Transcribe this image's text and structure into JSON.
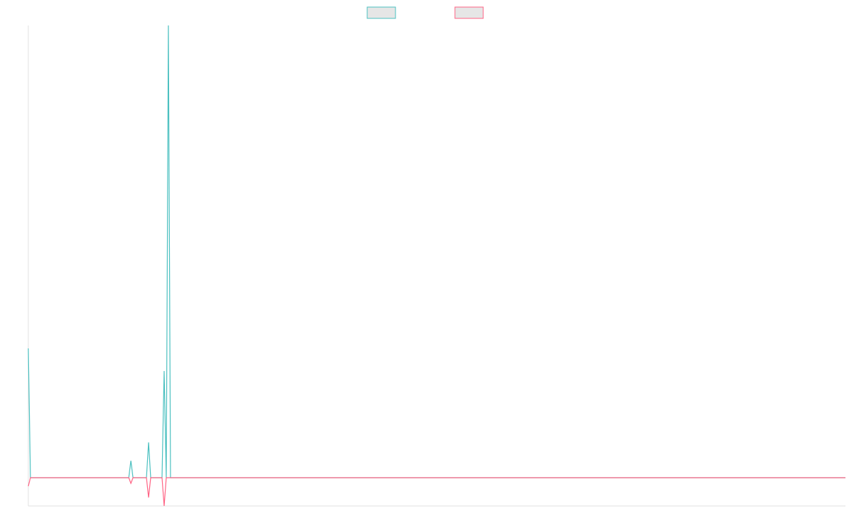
{
  "chart_data": {
    "type": "line",
    "x": [
      0,
      3,
      142,
      145,
      148,
      167,
      170,
      173,
      189,
      192,
      195,
      198,
      201,
      1155
    ],
    "series": [
      {
        "color": "#4bc0c0",
        "values": [
          183,
          0,
          0,
          24,
          0,
          0,
          50,
          0,
          0,
          151,
          0,
          640,
          0,
          0
        ]
      },
      {
        "color": "#ff6384",
        "values": [
          -12,
          0,
          0,
          -8,
          0,
          0,
          -28,
          0,
          0,
          -40,
          0,
          0,
          0,
          0
        ]
      }
    ],
    "xlim": [
      0,
      1155
    ],
    "ylim": [
      -40,
      640
    ],
    "legend": "top"
  }
}
